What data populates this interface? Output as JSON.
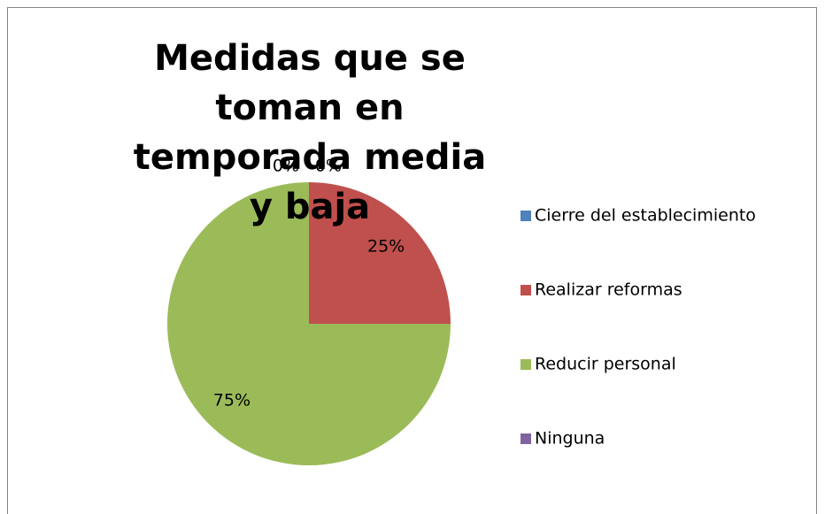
{
  "chart_data": {
    "type": "pie",
    "title": "Medidas que se toman en temporada media y baja",
    "categories": [
      "Cierre del establecimiento",
      "Realizar reformas",
      "Reducir personal",
      "Ninguna"
    ],
    "values": [
      0,
      25,
      75,
      0
    ],
    "value_labels": [
      "0%",
      "25%",
      "75%",
      "0%"
    ],
    "colors": [
      "#4f81bd",
      "#c0504d",
      "#9bbb59",
      "#8064a2"
    ],
    "legend": "right"
  }
}
